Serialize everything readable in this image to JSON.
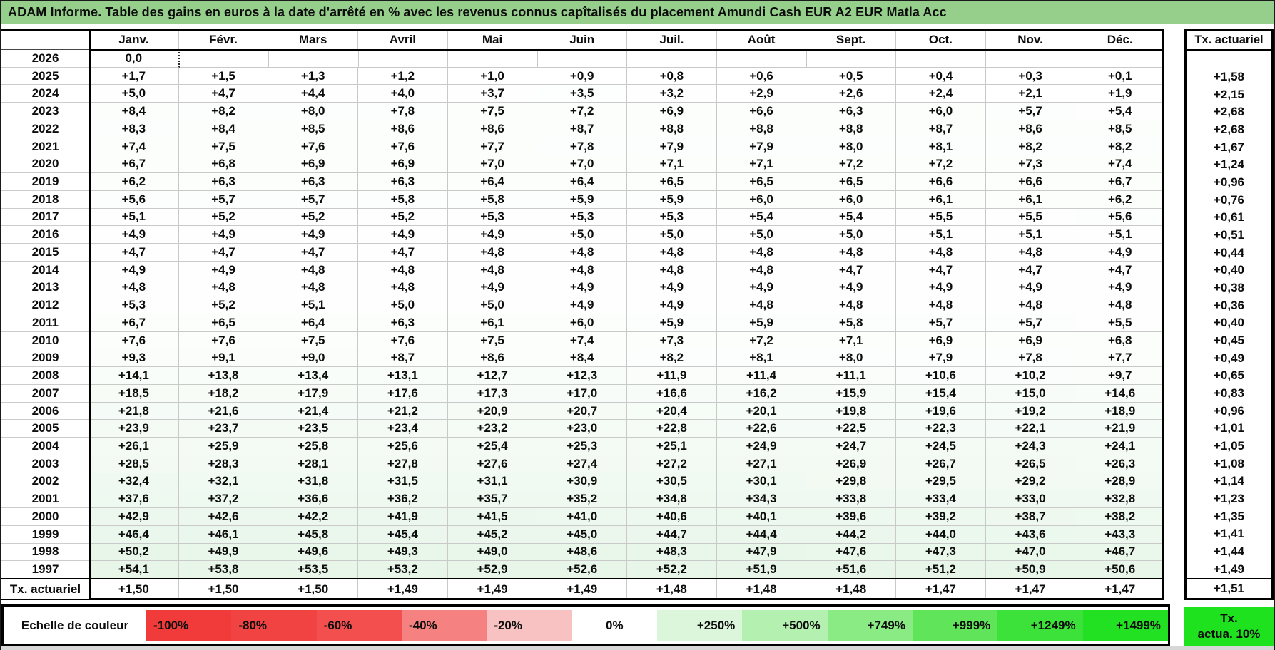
{
  "title": "ADAM Informe. Table des gains en euros à la date d'arrêté en % avec les revenus connus capîtalisés du placement Amundi Cash EUR A2 EUR Matla Acc",
  "colors": {
    "title_bg": "#95cf8b",
    "tx_legend_bg": "#1fe21f"
  },
  "table": {
    "month_headers": [
      "Janv.",
      "Févr.",
      "Mars",
      "Avril",
      "Mai",
      "Juin",
      "Juil.",
      "Août",
      "Sept.",
      "Oct.",
      "Nov.",
      "Déc."
    ],
    "right_header": "Tx. actuariel",
    "rows": [
      {
        "year": "2026",
        "values": [
          "0,0",
          "",
          "",
          "",
          "",
          "",
          "",
          "",
          "",
          "",
          "",
          ""
        ],
        "tx": ""
      },
      {
        "year": "2025",
        "values": [
          "+1,7",
          "+1,5",
          "+1,3",
          "+1,2",
          "+1,0",
          "+0,9",
          "+0,8",
          "+0,6",
          "+0,5",
          "+0,4",
          "+0,3",
          "+0,1"
        ],
        "tx": "+1,58"
      },
      {
        "year": "2024",
        "values": [
          "+5,0",
          "+4,7",
          "+4,4",
          "+4,0",
          "+3,7",
          "+3,5",
          "+3,2",
          "+2,9",
          "+2,6",
          "+2,4",
          "+2,1",
          "+1,9"
        ],
        "tx": "+2,15"
      },
      {
        "year": "2023",
        "values": [
          "+8,4",
          "+8,2",
          "+8,0",
          "+7,8",
          "+7,5",
          "+7,2",
          "+6,9",
          "+6,6",
          "+6,3",
          "+6,0",
          "+5,7",
          "+5,4"
        ],
        "tx": "+2,68"
      },
      {
        "year": "2022",
        "values": [
          "+8,3",
          "+8,4",
          "+8,5",
          "+8,6",
          "+8,6",
          "+8,7",
          "+8,8",
          "+8,8",
          "+8,8",
          "+8,7",
          "+8,6",
          "+8,5"
        ],
        "tx": "+2,68"
      },
      {
        "year": "2021",
        "values": [
          "+7,4",
          "+7,5",
          "+7,6",
          "+7,6",
          "+7,7",
          "+7,8",
          "+7,9",
          "+7,9",
          "+8,0",
          "+8,1",
          "+8,2",
          "+8,2"
        ],
        "tx": "+1,67"
      },
      {
        "year": "2020",
        "values": [
          "+6,7",
          "+6,8",
          "+6,9",
          "+6,9",
          "+7,0",
          "+7,0",
          "+7,1",
          "+7,1",
          "+7,2",
          "+7,2",
          "+7,3",
          "+7,4"
        ],
        "tx": "+1,24"
      },
      {
        "year": "2019",
        "values": [
          "+6,2",
          "+6,3",
          "+6,3",
          "+6,3",
          "+6,4",
          "+6,4",
          "+6,5",
          "+6,5",
          "+6,5",
          "+6,6",
          "+6,6",
          "+6,7"
        ],
        "tx": "+0,96"
      },
      {
        "year": "2018",
        "values": [
          "+5,6",
          "+5,7",
          "+5,7",
          "+5,8",
          "+5,8",
          "+5,9",
          "+5,9",
          "+6,0",
          "+6,0",
          "+6,1",
          "+6,1",
          "+6,2"
        ],
        "tx": "+0,76"
      },
      {
        "year": "2017",
        "values": [
          "+5,1",
          "+5,2",
          "+5,2",
          "+5,2",
          "+5,3",
          "+5,3",
          "+5,3",
          "+5,4",
          "+5,4",
          "+5,5",
          "+5,5",
          "+5,6"
        ],
        "tx": "+0,61"
      },
      {
        "year": "2016",
        "values": [
          "+4,9",
          "+4,9",
          "+4,9",
          "+4,9",
          "+4,9",
          "+5,0",
          "+5,0",
          "+5,0",
          "+5,0",
          "+5,1",
          "+5,1",
          "+5,1"
        ],
        "tx": "+0,51"
      },
      {
        "year": "2015",
        "values": [
          "+4,7",
          "+4,7",
          "+4,7",
          "+4,7",
          "+4,8",
          "+4,8",
          "+4,8",
          "+4,8",
          "+4,8",
          "+4,8",
          "+4,8",
          "+4,9"
        ],
        "tx": "+0,44"
      },
      {
        "year": "2014",
        "values": [
          "+4,9",
          "+4,9",
          "+4,8",
          "+4,8",
          "+4,8",
          "+4,8",
          "+4,8",
          "+4,8",
          "+4,7",
          "+4,7",
          "+4,7",
          "+4,7"
        ],
        "tx": "+0,40"
      },
      {
        "year": "2013",
        "values": [
          "+4,8",
          "+4,8",
          "+4,8",
          "+4,8",
          "+4,9",
          "+4,9",
          "+4,9",
          "+4,9",
          "+4,9",
          "+4,9",
          "+4,9",
          "+4,9"
        ],
        "tx": "+0,38"
      },
      {
        "year": "2012",
        "values": [
          "+5,3",
          "+5,2",
          "+5,1",
          "+5,0",
          "+5,0",
          "+4,9",
          "+4,9",
          "+4,8",
          "+4,8",
          "+4,8",
          "+4,8",
          "+4,8"
        ],
        "tx": "+0,36"
      },
      {
        "year": "2011",
        "values": [
          "+6,7",
          "+6,5",
          "+6,4",
          "+6,3",
          "+6,1",
          "+6,0",
          "+5,9",
          "+5,9",
          "+5,8",
          "+5,7",
          "+5,7",
          "+5,5"
        ],
        "tx": "+0,40"
      },
      {
        "year": "2010",
        "values": [
          "+7,6",
          "+7,6",
          "+7,5",
          "+7,6",
          "+7,5",
          "+7,4",
          "+7,3",
          "+7,2",
          "+7,1",
          "+6,9",
          "+6,9",
          "+6,8"
        ],
        "tx": "+0,45"
      },
      {
        "year": "2009",
        "values": [
          "+9,3",
          "+9,1",
          "+9,0",
          "+8,7",
          "+8,6",
          "+8,4",
          "+8,2",
          "+8,1",
          "+8,0",
          "+7,9",
          "+7,8",
          "+7,7"
        ],
        "tx": "+0,49"
      },
      {
        "year": "2008",
        "values": [
          "+14,1",
          "+13,8",
          "+13,4",
          "+13,1",
          "+12,7",
          "+12,3",
          "+11,9",
          "+11,4",
          "+11,1",
          "+10,6",
          "+10,2",
          "+9,7"
        ],
        "tx": "+0,65"
      },
      {
        "year": "2007",
        "values": [
          "+18,5",
          "+18,2",
          "+17,9",
          "+17,6",
          "+17,3",
          "+17,0",
          "+16,6",
          "+16,2",
          "+15,9",
          "+15,4",
          "+15,0",
          "+14,6"
        ],
        "tx": "+0,83"
      },
      {
        "year": "2006",
        "values": [
          "+21,8",
          "+21,6",
          "+21,4",
          "+21,2",
          "+20,9",
          "+20,7",
          "+20,4",
          "+20,1",
          "+19,8",
          "+19,6",
          "+19,2",
          "+18,9"
        ],
        "tx": "+0,96"
      },
      {
        "year": "2005",
        "values": [
          "+23,9",
          "+23,7",
          "+23,5",
          "+23,4",
          "+23,2",
          "+23,0",
          "+22,8",
          "+22,6",
          "+22,5",
          "+22,3",
          "+22,1",
          "+21,9"
        ],
        "tx": "+1,01"
      },
      {
        "year": "2004",
        "values": [
          "+26,1",
          "+25,9",
          "+25,8",
          "+25,6",
          "+25,4",
          "+25,3",
          "+25,1",
          "+24,9",
          "+24,7",
          "+24,5",
          "+24,3",
          "+24,1"
        ],
        "tx": "+1,05"
      },
      {
        "year": "2003",
        "values": [
          "+28,5",
          "+28,3",
          "+28,1",
          "+27,8",
          "+27,6",
          "+27,4",
          "+27,2",
          "+27,1",
          "+26,9",
          "+26,7",
          "+26,5",
          "+26,3"
        ],
        "tx": "+1,08"
      },
      {
        "year": "2002",
        "values": [
          "+32,4",
          "+32,1",
          "+31,8",
          "+31,5",
          "+31,1",
          "+30,9",
          "+30,5",
          "+30,1",
          "+29,8",
          "+29,5",
          "+29,2",
          "+28,9"
        ],
        "tx": "+1,14"
      },
      {
        "year": "2001",
        "values": [
          "+37,6",
          "+37,2",
          "+36,6",
          "+36,2",
          "+35,7",
          "+35,2",
          "+34,8",
          "+34,3",
          "+33,8",
          "+33,4",
          "+33,0",
          "+32,8"
        ],
        "tx": "+1,23"
      },
      {
        "year": "2000",
        "values": [
          "+42,9",
          "+42,6",
          "+42,2",
          "+41,9",
          "+41,5",
          "+41,0",
          "+40,6",
          "+40,1",
          "+39,6",
          "+39,2",
          "+38,7",
          "+38,2"
        ],
        "tx": "+1,35"
      },
      {
        "year": "1999",
        "values": [
          "+46,4",
          "+46,1",
          "+45,8",
          "+45,4",
          "+45,2",
          "+45,0",
          "+44,7",
          "+44,4",
          "+44,2",
          "+44,0",
          "+43,6",
          "+43,3"
        ],
        "tx": "+1,41"
      },
      {
        "year": "1998",
        "values": [
          "+50,2",
          "+49,9",
          "+49,6",
          "+49,3",
          "+49,0",
          "+48,6",
          "+48,3",
          "+47,9",
          "+47,6",
          "+47,3",
          "+47,0",
          "+46,7"
        ],
        "tx": "+1,44"
      },
      {
        "year": "1997",
        "values": [
          "+54,1",
          "+53,8",
          "+53,5",
          "+53,2",
          "+52,9",
          "+52,6",
          "+52,2",
          "+51,9",
          "+51,6",
          "+51,2",
          "+50,9",
          "+50,6"
        ],
        "tx": "+1,49"
      }
    ],
    "footer": {
      "label": "Tx. actuariel",
      "values": [
        "+1,50",
        "+1,50",
        "+1,50",
        "+1,49",
        "+1,49",
        "+1,49",
        "+1,48",
        "+1,48",
        "+1,48",
        "+1,47",
        "+1,47",
        "+1,47"
      ],
      "tx": "+1,51"
    }
  },
  "legend": {
    "label": "Echelle de couleur",
    "cells": [
      {
        "label": "-100%",
        "color": "#f13a3a",
        "align": "left"
      },
      {
        "label": "-80%",
        "color": "#f24343",
        "align": "left"
      },
      {
        "label": "-60%",
        "color": "#f34f4f",
        "align": "left"
      },
      {
        "label": "-40%",
        "color": "#f68181",
        "align": "left"
      },
      {
        "label": "-20%",
        "color": "#f9c2c2",
        "align": "left"
      },
      {
        "label": "0%",
        "color": "#ffffff",
        "align": "center"
      },
      {
        "label": "+250%",
        "color": "#dcf6dc",
        "align": "right"
      },
      {
        "label": "+500%",
        "color": "#b4f0b0",
        "align": "right"
      },
      {
        "label": "+749%",
        "color": "#8aeb84",
        "align": "right"
      },
      {
        "label": "+999%",
        "color": "#60e55a",
        "align": "right"
      },
      {
        "label": "+1249%",
        "color": "#3ce23a",
        "align": "right"
      },
      {
        "label": "+1499%",
        "color": "#22e022",
        "align": "right"
      }
    ],
    "tx_box": {
      "line1": "Tx.",
      "line2": "actua. 10%"
    }
  }
}
